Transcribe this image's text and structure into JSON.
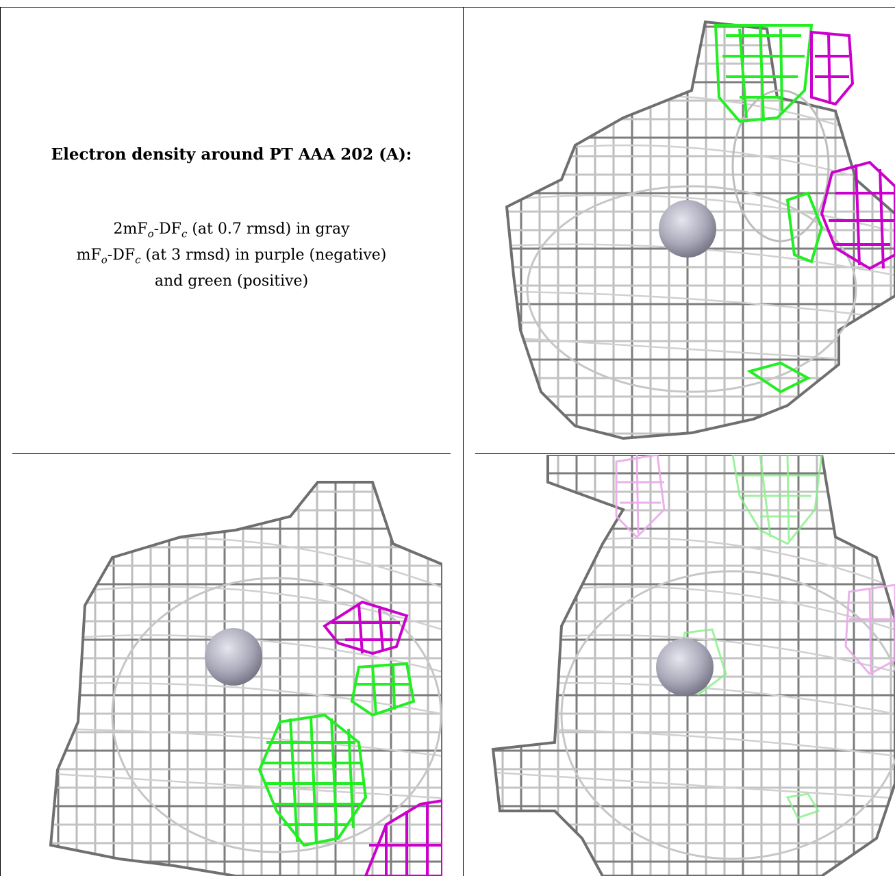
{
  "caption": {
    "title": "Electron density around PT AAA 202 (A):",
    "line1": {
      "prefix": "2mF",
      "sub1": "o",
      "mid": "-DF",
      "sub2": "c",
      "suffix": " (at 0.7 rmsd) in gray"
    },
    "line2": {
      "prefix": "mF",
      "sub1": "o",
      "mid": "-DF",
      "sub2": "c",
      "suffix": " (at 3 rmsd) in purple (negative)"
    },
    "line3": "and green (positive)"
  },
  "colors": {
    "map_2fofc": "#9a9a9a",
    "map_fofc_negative": "#cc00cc",
    "map_fofc_positive": "#22ee22",
    "atom": "#a8a8b8"
  },
  "panels": [
    {
      "name": "view-1"
    },
    {
      "name": "view-2"
    },
    {
      "name": "view-3"
    }
  ]
}
